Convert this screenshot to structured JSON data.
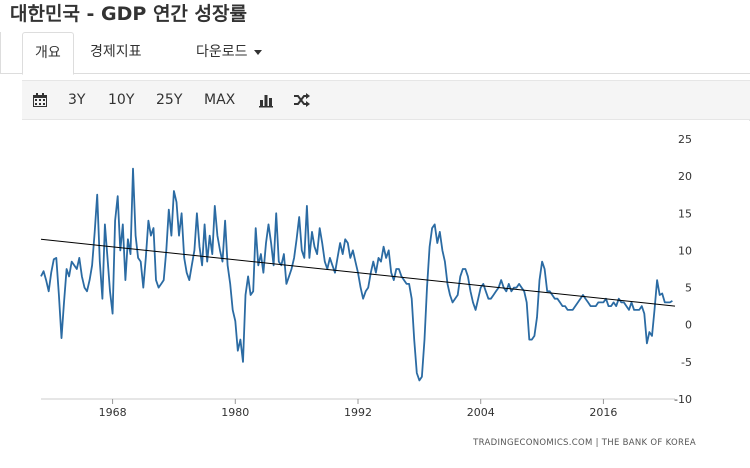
{
  "header": {
    "title": "대한민국 - GDP 연간 성장률"
  },
  "tabs": [
    {
      "label": "개요"
    },
    {
      "label": "경제지표"
    },
    {
      "label": "다운로드"
    }
  ],
  "toolbar": {
    "calendar_icon": "calendar-icon",
    "ranges": [
      "3Y",
      "10Y",
      "25Y",
      "MAX"
    ],
    "chart_type_icon": "bar-chart-icon",
    "compare_icon": "shuffle-icon"
  },
  "chart_data": {
    "type": "line",
    "title": "",
    "xlabel": "",
    "ylabel": "",
    "xlim": [
      1961.0,
      2023.0
    ],
    "ylim": [
      -10,
      25
    ],
    "x_ticks": [
      "1968",
      "1980",
      "1992",
      "2004",
      "2016"
    ],
    "y_ticks": [
      "25",
      "20",
      "15",
      "10",
      "5",
      "0",
      "-5",
      "-10"
    ],
    "grid": false,
    "legend": "none",
    "colors": {
      "series": "#2b6ba3",
      "trend": "#000000",
      "axis_text": "#333333"
    },
    "source_label": "TRADINGECONOMICS.COM | THE BANK OF KOREA",
    "series": [
      {
        "values": [
          [
            1961.0,
            6.5
          ],
          [
            1961.25,
            7.2
          ],
          [
            1961.5,
            6.0
          ],
          [
            1961.75,
            4.5
          ],
          [
            1962.0,
            7.0
          ],
          [
            1962.25,
            8.8
          ],
          [
            1962.5,
            9.0
          ],
          [
            1962.75,
            4.0
          ],
          [
            1963.0,
            -1.8
          ],
          [
            1963.25,
            3.0
          ],
          [
            1963.5,
            7.5
          ],
          [
            1963.75,
            6.5
          ],
          [
            1964.0,
            8.5
          ],
          [
            1964.25,
            8.0
          ],
          [
            1964.5,
            7.5
          ],
          [
            1964.75,
            9.0
          ],
          [
            1965.0,
            6.5
          ],
          [
            1965.25,
            5.0
          ],
          [
            1965.5,
            4.5
          ],
          [
            1965.75,
            6.0
          ],
          [
            1966.0,
            8.0
          ],
          [
            1966.25,
            12.5
          ],
          [
            1966.5,
            17.5
          ],
          [
            1966.75,
            8.5
          ],
          [
            1967.0,
            3.5
          ],
          [
            1967.25,
            13.5
          ],
          [
            1967.5,
            9.0
          ],
          [
            1967.75,
            4.5
          ],
          [
            1968.0,
            1.5
          ],
          [
            1968.25,
            14.0
          ],
          [
            1968.5,
            17.3
          ],
          [
            1968.75,
            10.0
          ],
          [
            1969.0,
            13.5
          ],
          [
            1969.25,
            6.0
          ],
          [
            1969.5,
            11.5
          ],
          [
            1969.75,
            9.5
          ],
          [
            1970.0,
            21.0
          ],
          [
            1970.25,
            12.0
          ],
          [
            1970.5,
            9.0
          ],
          [
            1970.75,
            8.5
          ],
          [
            1971.0,
            5.0
          ],
          [
            1971.25,
            9.0
          ],
          [
            1971.5,
            14.0
          ],
          [
            1971.75,
            12.0
          ],
          [
            1972.0,
            13.0
          ],
          [
            1972.25,
            6.0
          ],
          [
            1972.5,
            5.0
          ],
          [
            1972.75,
            5.5
          ],
          [
            1973.0,
            6.0
          ],
          [
            1973.25,
            10.0
          ],
          [
            1973.5,
            15.5
          ],
          [
            1973.75,
            12.0
          ],
          [
            1974.0,
            18.0
          ],
          [
            1974.25,
            16.5
          ],
          [
            1974.5,
            12.0
          ],
          [
            1974.75,
            15.0
          ],
          [
            1975.0,
            9.0
          ],
          [
            1975.25,
            7.0
          ],
          [
            1975.5,
            6.0
          ],
          [
            1975.75,
            8.0
          ],
          [
            1976.0,
            10.0
          ],
          [
            1976.25,
            15.0
          ],
          [
            1976.5,
            10.5
          ],
          [
            1976.75,
            8.0
          ],
          [
            1977.0,
            13.5
          ],
          [
            1977.25,
            8.5
          ],
          [
            1977.5,
            12.0
          ],
          [
            1977.75,
            9.5
          ],
          [
            1978.0,
            16.0
          ],
          [
            1978.25,
            12.0
          ],
          [
            1978.5,
            10.0
          ],
          [
            1978.75,
            8.5
          ],
          [
            1979.0,
            14.0
          ],
          [
            1979.25,
            8.0
          ],
          [
            1979.5,
            5.5
          ],
          [
            1979.75,
            2.0
          ],
          [
            1980.0,
            0.5
          ],
          [
            1980.25,
            -3.5
          ],
          [
            1980.5,
            -2.0
          ],
          [
            1980.75,
            -5.0
          ],
          [
            1981.0,
            4.0
          ],
          [
            1981.25,
            6.5
          ],
          [
            1981.5,
            4.0
          ],
          [
            1981.75,
            4.5
          ],
          [
            1982.0,
            13.0
          ],
          [
            1982.25,
            8.0
          ],
          [
            1982.5,
            9.5
          ],
          [
            1982.75,
            7.0
          ],
          [
            1983.0,
            11.0
          ],
          [
            1983.25,
            13.5
          ],
          [
            1983.5,
            11.0
          ],
          [
            1983.75,
            8.0
          ],
          [
            1984.0,
            15.0
          ],
          [
            1984.25,
            8.5
          ],
          [
            1984.5,
            8.0
          ],
          [
            1984.75,
            9.5
          ],
          [
            1985.0,
            5.5
          ],
          [
            1985.25,
            6.5
          ],
          [
            1985.5,
            7.5
          ],
          [
            1985.75,
            9.0
          ],
          [
            1986.0,
            11.5
          ],
          [
            1986.25,
            14.5
          ],
          [
            1986.5,
            10.0
          ],
          [
            1986.75,
            9.0
          ],
          [
            1987.0,
            16.0
          ],
          [
            1987.25,
            9.0
          ],
          [
            1987.5,
            12.5
          ],
          [
            1987.75,
            10.5
          ],
          [
            1988.0,
            9.5
          ],
          [
            1988.25,
            13.0
          ],
          [
            1988.5,
            11.0
          ],
          [
            1988.75,
            8.5
          ],
          [
            1989.0,
            7.5
          ],
          [
            1989.25,
            9.0
          ],
          [
            1989.5,
            8.0
          ],
          [
            1989.75,
            7.0
          ],
          [
            1990.0,
            9.0
          ],
          [
            1990.25,
            11.0
          ],
          [
            1990.5,
            9.5
          ],
          [
            1990.75,
            11.5
          ],
          [
            1991.0,
            11.0
          ],
          [
            1991.25,
            9.0
          ],
          [
            1991.5,
            10.0
          ],
          [
            1991.75,
            8.5
          ],
          [
            1992.0,
            7.0
          ],
          [
            1992.25,
            5.0
          ],
          [
            1992.5,
            3.5
          ],
          [
            1992.75,
            4.5
          ],
          [
            1993.0,
            5.0
          ],
          [
            1993.25,
            7.0
          ],
          [
            1993.5,
            8.5
          ],
          [
            1993.75,
            7.0
          ],
          [
            1994.0,
            9.0
          ],
          [
            1994.25,
            8.5
          ],
          [
            1994.5,
            10.5
          ],
          [
            1994.75,
            9.0
          ],
          [
            1995.0,
            10.0
          ],
          [
            1995.25,
            7.0
          ],
          [
            1995.5,
            6.0
          ],
          [
            1995.75,
            7.5
          ],
          [
            1996.0,
            7.5
          ],
          [
            1996.25,
            6.5
          ],
          [
            1996.5,
            6.0
          ],
          [
            1996.75,
            5.5
          ],
          [
            1997.0,
            5.5
          ],
          [
            1997.25,
            3.5
          ],
          [
            1997.5,
            -2.0
          ],
          [
            1997.75,
            -6.5
          ],
          [
            1998.0,
            -7.5
          ],
          [
            1998.25,
            -7.0
          ],
          [
            1998.5,
            -2.0
          ],
          [
            1998.75,
            5.0
          ],
          [
            1999.0,
            10.5
          ],
          [
            1999.25,
            13.0
          ],
          [
            1999.5,
            13.5
          ],
          [
            1999.75,
            11.0
          ],
          [
            2000.0,
            12.5
          ],
          [
            2000.25,
            10.0
          ],
          [
            2000.5,
            8.5
          ],
          [
            2000.75,
            5.5
          ],
          [
            2001.0,
            4.0
          ],
          [
            2001.25,
            3.0
          ],
          [
            2001.5,
            3.5
          ],
          [
            2001.75,
            4.0
          ],
          [
            2002.0,
            6.5
          ],
          [
            2002.25,
            7.5
          ],
          [
            2002.5,
            7.5
          ],
          [
            2002.75,
            6.5
          ],
          [
            2003.0,
            4.5
          ],
          [
            2003.25,
            3.0
          ],
          [
            2003.5,
            2.0
          ],
          [
            2003.75,
            3.5
          ],
          [
            2004.0,
            5.0
          ],
          [
            2004.25,
            5.5
          ],
          [
            2004.5,
            4.5
          ],
          [
            2004.75,
            3.5
          ],
          [
            2005.0,
            3.5
          ],
          [
            2005.25,
            4.0
          ],
          [
            2005.5,
            4.5
          ],
          [
            2005.75,
            5.0
          ],
          [
            2006.0,
            6.0
          ],
          [
            2006.25,
            5.0
          ],
          [
            2006.5,
            4.5
          ],
          [
            2006.75,
            5.5
          ],
          [
            2007.0,
            4.5
          ],
          [
            2007.25,
            5.0
          ],
          [
            2007.5,
            5.0
          ],
          [
            2007.75,
            5.5
          ],
          [
            2008.0,
            5.0
          ],
          [
            2008.25,
            4.5
          ],
          [
            2008.5,
            3.0
          ],
          [
            2008.75,
            -2.0
          ],
          [
            2009.0,
            -2.0
          ],
          [
            2009.25,
            -1.5
          ],
          [
            2009.5,
            1.0
          ],
          [
            2009.75,
            6.0
          ],
          [
            2010.0,
            8.5
          ],
          [
            2010.25,
            7.5
          ],
          [
            2010.5,
            4.5
          ],
          [
            2010.75,
            4.5
          ],
          [
            2011.0,
            4.0
          ],
          [
            2011.25,
            3.5
          ],
          [
            2011.5,
            3.5
          ],
          [
            2011.75,
            3.0
          ],
          [
            2012.0,
            2.5
          ],
          [
            2012.25,
            2.5
          ],
          [
            2012.5,
            2.0
          ],
          [
            2012.75,
            2.0
          ],
          [
            2013.0,
            2.0
          ],
          [
            2013.25,
            2.5
          ],
          [
            2013.5,
            3.0
          ],
          [
            2013.75,
            3.5
          ],
          [
            2014.0,
            4.0
          ],
          [
            2014.25,
            3.5
          ],
          [
            2014.5,
            3.0
          ],
          [
            2014.75,
            2.5
          ],
          [
            2015.0,
            2.5
          ],
          [
            2015.25,
            2.5
          ],
          [
            2015.5,
            3.0
          ],
          [
            2015.75,
            3.0
          ],
          [
            2016.0,
            3.0
          ],
          [
            2016.25,
            3.5
          ],
          [
            2016.5,
            2.5
          ],
          [
            2016.75,
            2.5
          ],
          [
            2017.0,
            3.0
          ],
          [
            2017.25,
            2.5
          ],
          [
            2017.5,
            3.5
          ],
          [
            2017.75,
            3.0
          ],
          [
            2018.0,
            3.0
          ],
          [
            2018.25,
            2.5
          ],
          [
            2018.5,
            2.0
          ],
          [
            2018.75,
            3.0
          ],
          [
            2019.0,
            2.0
          ],
          [
            2019.25,
            2.0
          ],
          [
            2019.5,
            2.0
          ],
          [
            2019.75,
            2.5
          ],
          [
            2020.0,
            1.5
          ],
          [
            2020.25,
            -2.5
          ],
          [
            2020.5,
            -1.0
          ],
          [
            2020.75,
            -1.5
          ],
          [
            2021.0,
            2.0
          ],
          [
            2021.25,
            6.0
          ],
          [
            2021.5,
            4.0
          ],
          [
            2021.75,
            4.2
          ],
          [
            2022.0,
            3.0
          ],
          [
            2022.25,
            3.0
          ],
          [
            2022.5,
            3.0
          ],
          [
            2022.75,
            3.2
          ]
        ]
      },
      {
        "values": [
          [
            1961.0,
            11.5
          ],
          [
            2023.0,
            2.5
          ]
        ]
      }
    ]
  }
}
